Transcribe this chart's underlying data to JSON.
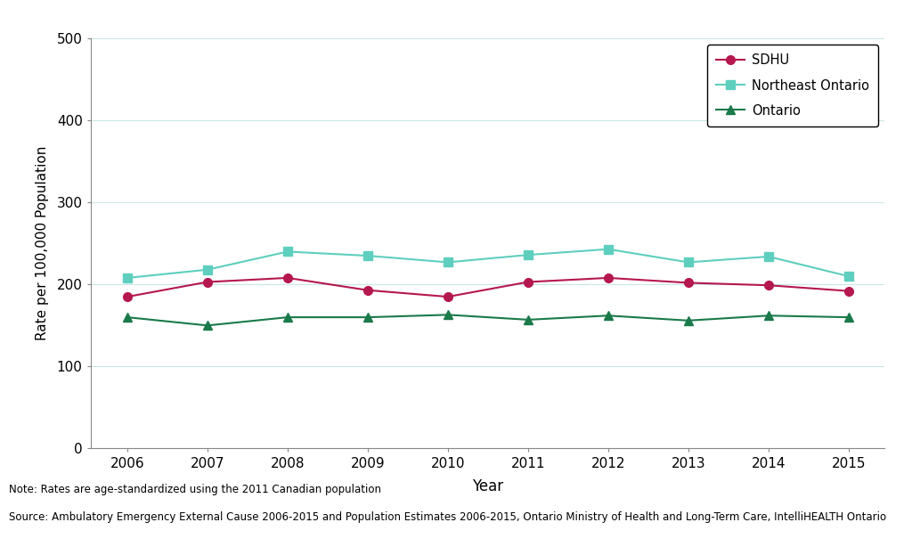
{
  "years": [
    2006,
    2007,
    2008,
    2009,
    2010,
    2011,
    2012,
    2013,
    2014,
    2015
  ],
  "sdhu": [
    185,
    203,
    208,
    193,
    185,
    203,
    208,
    202,
    199,
    192
  ],
  "northeast_ontario": [
    208,
    218,
    240,
    235,
    227,
    236,
    243,
    227,
    234,
    210
  ],
  "ontario": [
    160,
    150,
    160,
    160,
    163,
    157,
    162,
    156,
    162,
    160
  ],
  "sdhu_color": "#b5174f",
  "northeast_ontario_color": "#5ecfbe",
  "ontario_color": "#1a7a4a",
  "ylabel": "Rate per 100,000 Population",
  "xlabel": "Year",
  "ylim": [
    0,
    500
  ],
  "yticks": [
    0,
    100,
    200,
    300,
    400,
    500
  ],
  "legend_labels": [
    "SDHU",
    "Northeast Ontario",
    "Ontario"
  ],
  "note_line1": "Note: Rates are age-standardized using the 2011 Canadian population",
  "note_line2": "Source: Ambulatory Emergency External Cause 2006-2015 and Population Estimates 2006-2015, Ontario Ministry of Health and Long-Term Care, IntelliHEALTH Ontario",
  "background_color": "#ffffff",
  "grid_color": "#c8e6e6"
}
